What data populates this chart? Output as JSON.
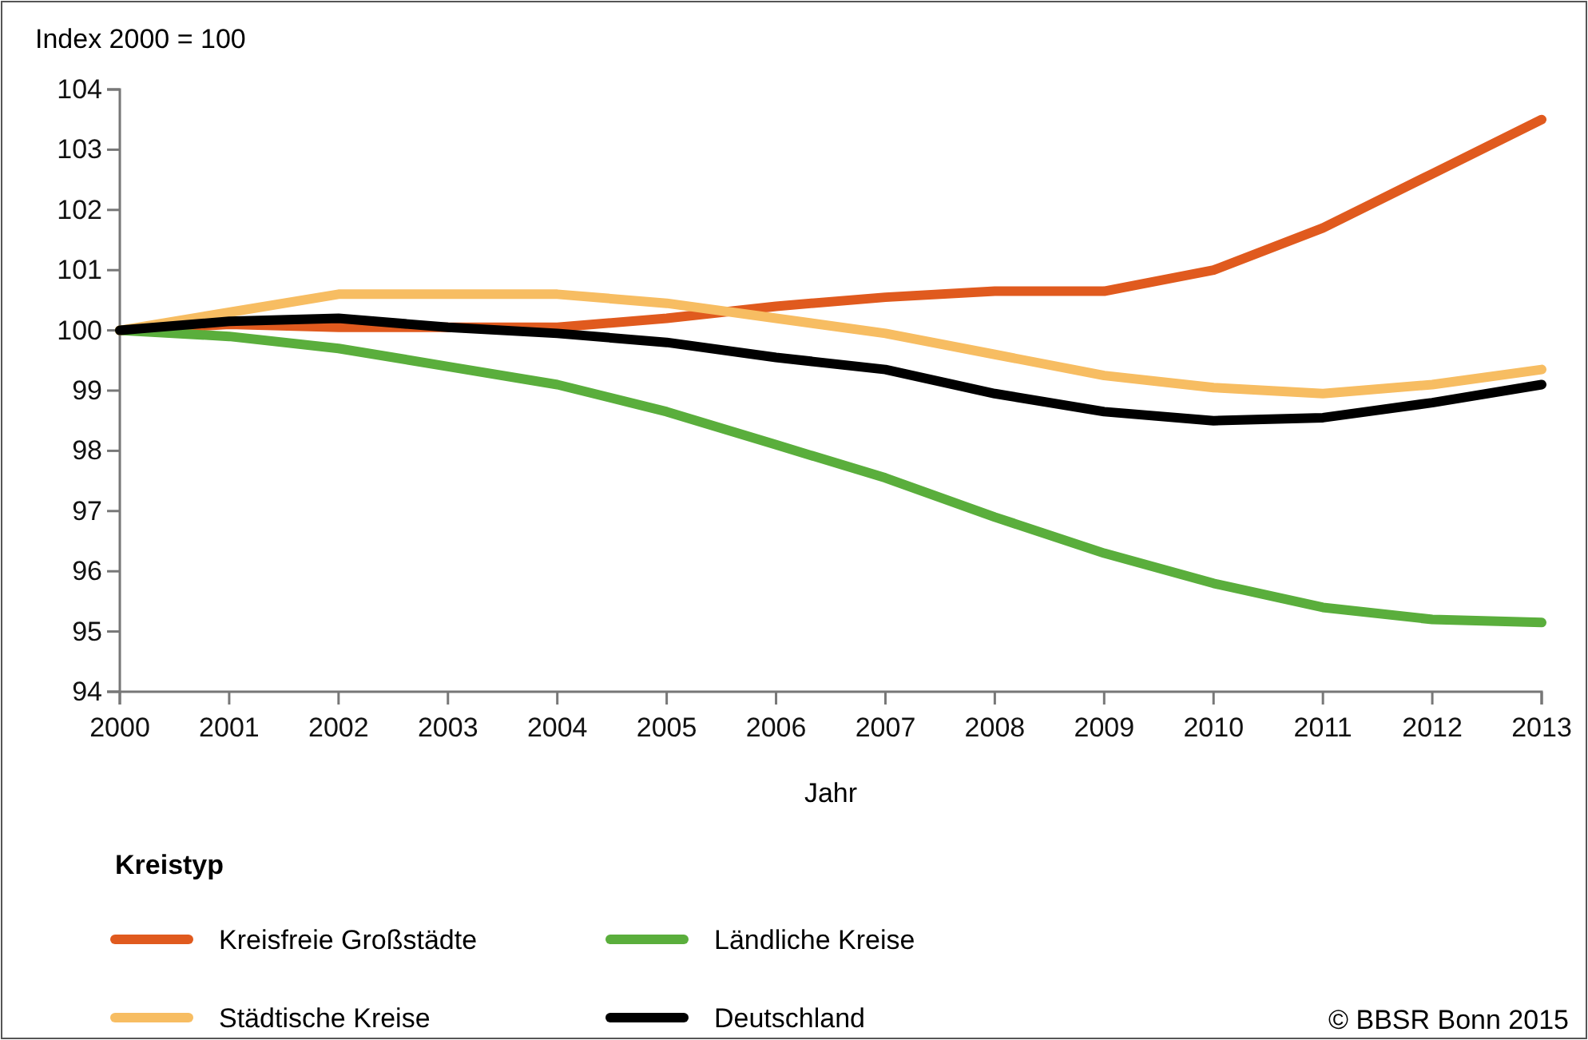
{
  "chart_data": {
    "type": "line",
    "ylabel": "Index 2000 = 100",
    "xlabel": "Jahr",
    "legend_title": "Kreistyp",
    "x": [
      2000,
      2001,
      2002,
      2003,
      2004,
      2005,
      2006,
      2007,
      2008,
      2009,
      2010,
      2011,
      2012,
      2013
    ],
    "xlim": [
      2000,
      2013
    ],
    "xticks": [
      2000,
      2001,
      2002,
      2003,
      2004,
      2005,
      2006,
      2007,
      2008,
      2009,
      2010,
      2011,
      2012,
      2013
    ],
    "ylim": [
      94,
      104
    ],
    "yticks": [
      94,
      95,
      96,
      97,
      98,
      99,
      100,
      101,
      102,
      103,
      104
    ],
    "grid": false,
    "legend": "bottom",
    "line_style": "solid",
    "annotations": [
      "© BBSR Bonn 2015"
    ],
    "series": [
      {
        "name": "Kreisfreie Großstädte",
        "color": "#e05a1e",
        "values": [
          100,
          100.1,
          100.05,
          100.05,
          100.05,
          100.2,
          100.4,
          100.55,
          100.65,
          100.65,
          101.0,
          101.7,
          102.6,
          103.5
        ]
      },
      {
        "name": "Ländliche Kreise",
        "color": "#5aae3c",
        "values": [
          100,
          99.9,
          99.7,
          99.4,
          99.1,
          98.65,
          98.1,
          97.55,
          96.9,
          96.3,
          95.8,
          95.4,
          95.2,
          95.15
        ]
      },
      {
        "name": "Städtische Kreise",
        "color": "#f7bd62",
        "values": [
          100,
          100.3,
          100.6,
          100.6,
          100.6,
          100.45,
          100.2,
          99.95,
          99.6,
          99.25,
          99.05,
          98.95,
          99.1,
          99.35
        ]
      },
      {
        "name": "Deutschland",
        "color": "#000000",
        "values": [
          100,
          100.15,
          100.2,
          100.05,
          99.95,
          99.8,
          99.55,
          99.35,
          98.95,
          98.65,
          98.5,
          98.55,
          98.8,
          99.1
        ]
      }
    ]
  }
}
